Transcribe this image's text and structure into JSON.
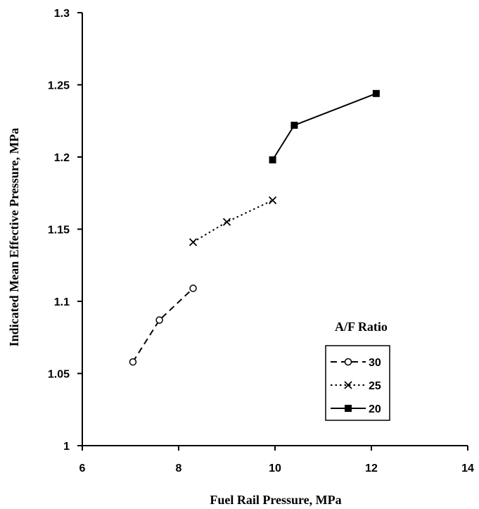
{
  "chart_data": {
    "type": "line",
    "title": "",
    "xlabel": "Fuel Rail Pressure, MPa",
    "ylabel": "Indicated Mean Effective Pressure, MPa",
    "xlim": [
      6,
      14
    ],
    "ylim": [
      1,
      1.3
    ],
    "x_ticks": [
      "6",
      "8",
      "10",
      "12",
      "14"
    ],
    "y_ticks": [
      "1",
      "1.05",
      "1.1",
      "1.15",
      "1.2",
      "1.25",
      "1.3"
    ],
    "grid": false,
    "legend": {
      "title": "A/F Ratio",
      "position": "bottom-right"
    },
    "series": [
      {
        "name": "30",
        "marker": "circle-open",
        "line": "dashed",
        "x": [
          7.05,
          7.6,
          8.3
        ],
        "y": [
          1.058,
          1.087,
          1.109
        ]
      },
      {
        "name": "25",
        "marker": "x",
        "line": "dotted",
        "x": [
          8.3,
          9.0,
          9.95
        ],
        "y": [
          1.141,
          1.155,
          1.17
        ]
      },
      {
        "name": "20",
        "marker": "square-filled",
        "line": "solid",
        "x": [
          9.95,
          10.4,
          12.1
        ],
        "y": [
          1.198,
          1.222,
          1.244
        ]
      }
    ]
  }
}
